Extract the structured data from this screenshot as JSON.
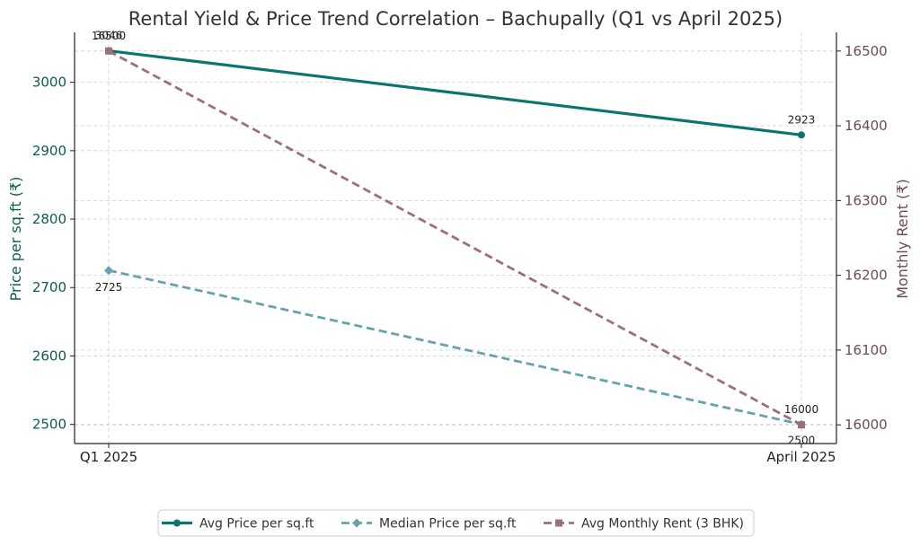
{
  "chart_data": {
    "type": "line",
    "title": "Rental Yield & Price Trend Correlation – Bachupally (Q1 vs April 2025)",
    "categories": [
      "Q1 2025",
      "April 2025"
    ],
    "y_left": {
      "label": "Price per sq.ft (₹)",
      "ylim": [
        2472,
        3073
      ],
      "ticks": [
        2500,
        2600,
        2700,
        2800,
        2900,
        3000
      ],
      "color": "#0b5e4a"
    },
    "y_right": {
      "label": "Monthly Rent (₹)",
      "ylim": [
        15975,
        16525
      ],
      "ticks": [
        16000,
        16100,
        16200,
        16300,
        16400,
        16500
      ],
      "color": "#6b4a55"
    },
    "grid": true,
    "legend_position": "bottom-center",
    "series": [
      {
        "name": "Avg Price per sq.ft",
        "axis": "left",
        "values": [
          3046,
          2923
        ],
        "labels": [
          "3046",
          "2923"
        ],
        "color": "#0b7370",
        "marker": "circle",
        "dashed": false
      },
      {
        "name": "Median Price per sq.ft",
        "axis": "left",
        "values": [
          2725,
          2500
        ],
        "labels": [
          "2725",
          "2500"
        ],
        "color": "#65a3ad",
        "marker": "diamond",
        "dashed": true
      },
      {
        "name": "Avg Monthly Rent (3 BHK)",
        "axis": "right",
        "values": [
          16500,
          16000
        ],
        "labels": [
          "16500",
          "16000"
        ],
        "color": "#9c6f80",
        "marker": "square",
        "dashed": true
      }
    ]
  }
}
